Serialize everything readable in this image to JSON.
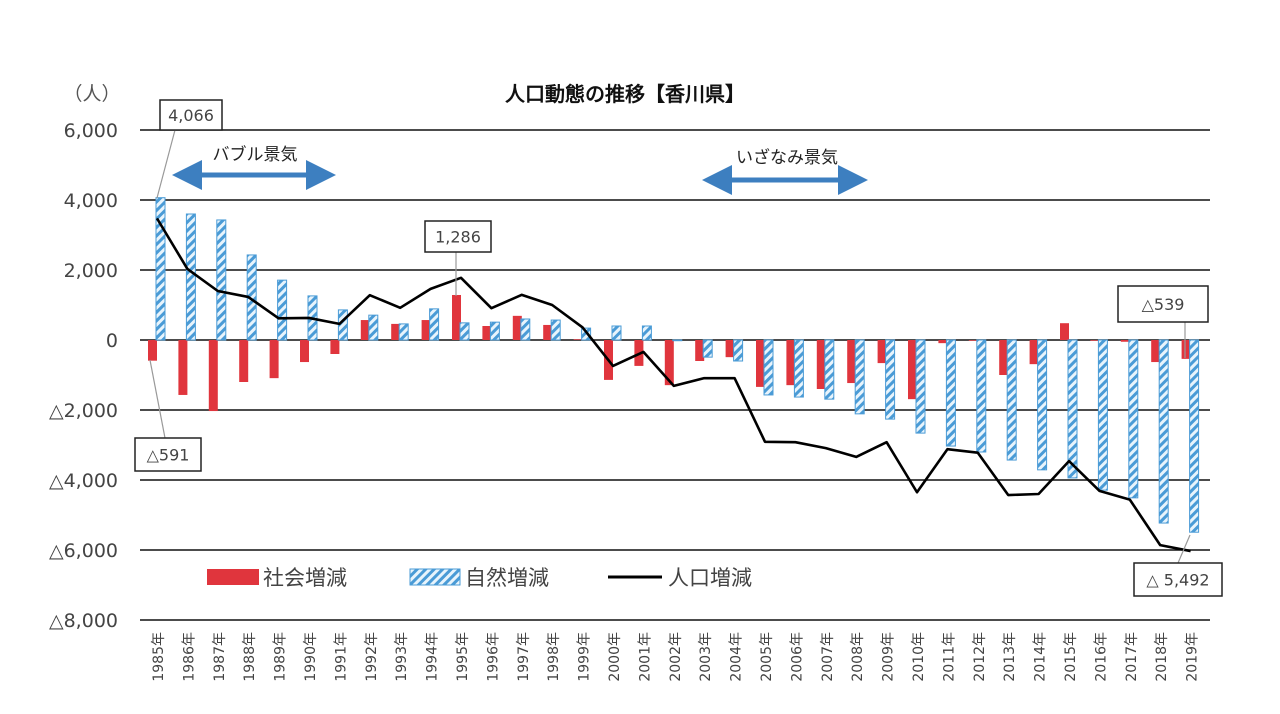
{
  "chart_data": {
    "type": "bar",
    "title": "人口動態の推移【香川県】",
    "ylabel": "（人）",
    "ylim": [
      -8000,
      6000
    ],
    "yticks": [
      6000,
      4000,
      2000,
      0,
      -2000,
      -4000,
      -6000,
      -8000
    ],
    "ytick_labels": [
      "6,000",
      "4,000",
      "2,000",
      "0",
      "△2,000",
      "△4,000",
      "△6,000",
      "△8,000"
    ],
    "grid": true,
    "legend_position": "bottom-left",
    "categories": [
      "1985年",
      "1986年",
      "1987年",
      "1988年",
      "1989年",
      "1990年",
      "1991年",
      "1992年",
      "1993年",
      "1994年",
      "1995年",
      "1996年",
      "1997年",
      "1998年",
      "1999年",
      "2000年",
      "2001年",
      "2002年",
      "2003年",
      "2004年",
      "2005年",
      "2006年",
      "2007年",
      "2008年",
      "2009年",
      "2010年",
      "2011年",
      "2012年",
      "2013年",
      "2014年",
      "2015年",
      "2016年",
      "2017年",
      "2018年",
      "2019年"
    ],
    "series": [
      {
        "name": "社会増減",
        "type": "bar",
        "color": "#e0353d",
        "values": [
          -591,
          -1570,
          -2030,
          -1200,
          -1090,
          -630,
          -400,
          570,
          460,
          570,
          1286,
          400,
          690,
          430,
          20,
          -1140,
          -740,
          -1290,
          -600,
          -490,
          -1340,
          -1290,
          -1400,
          -1230,
          -660,
          -1690,
          -90,
          -20,
          -1000,
          -690,
          480,
          -20,
          -50,
          -630,
          -539
        ]
      },
      {
        "name": "自然増減",
        "type": "bar-hatched",
        "color": "#4a9bd6",
        "values": [
          4066,
          3600,
          3430,
          2430,
          1710,
          1260,
          860,
          710,
          460,
          890,
          490,
          510,
          600,
          570,
          340,
          400,
          400,
          -20,
          -490,
          -600,
          -1570,
          -1630,
          -1690,
          -2110,
          -2260,
          -2660,
          -3030,
          -3200,
          -3430,
          -3710,
          -3940,
          -4290,
          -4510,
          -5230,
          -5492
        ]
      },
      {
        "name": "人口増減",
        "type": "line",
        "color": "#000000",
        "values": [
          3475,
          2030,
          1400,
          1230,
          620,
          630,
          460,
          1280,
          920,
          1460,
          1776,
          910,
          1290,
          1000,
          360,
          -740,
          -340,
          -1310,
          -1090,
          -1090,
          -2910,
          -2920,
          -3090,
          -3340,
          -2920,
          -4350,
          -3120,
          -3220,
          -4430,
          -4400,
          -3460,
          -4310,
          -4560,
          -5860,
          -6031
        ]
      }
    ],
    "annotations": [
      {
        "text": "4,066",
        "category": "1985年",
        "series": "自然増減"
      },
      {
        "text": "△591",
        "category": "1985年",
        "series": "社会増減"
      },
      {
        "text": "1,286",
        "category": "1995年",
        "series": "社会増減"
      },
      {
        "text": "△539",
        "category": "2019年",
        "series": "社会増減"
      },
      {
        "text": "△ 5,492",
        "category": "2019年",
        "series": "自然増減"
      }
    ],
    "periods": [
      {
        "text": "バブル景気",
        "from": "1986年",
        "to": "1991年"
      },
      {
        "text": "いざなみ景気",
        "from": "2003年",
        "to": "2008年"
      }
    ]
  }
}
